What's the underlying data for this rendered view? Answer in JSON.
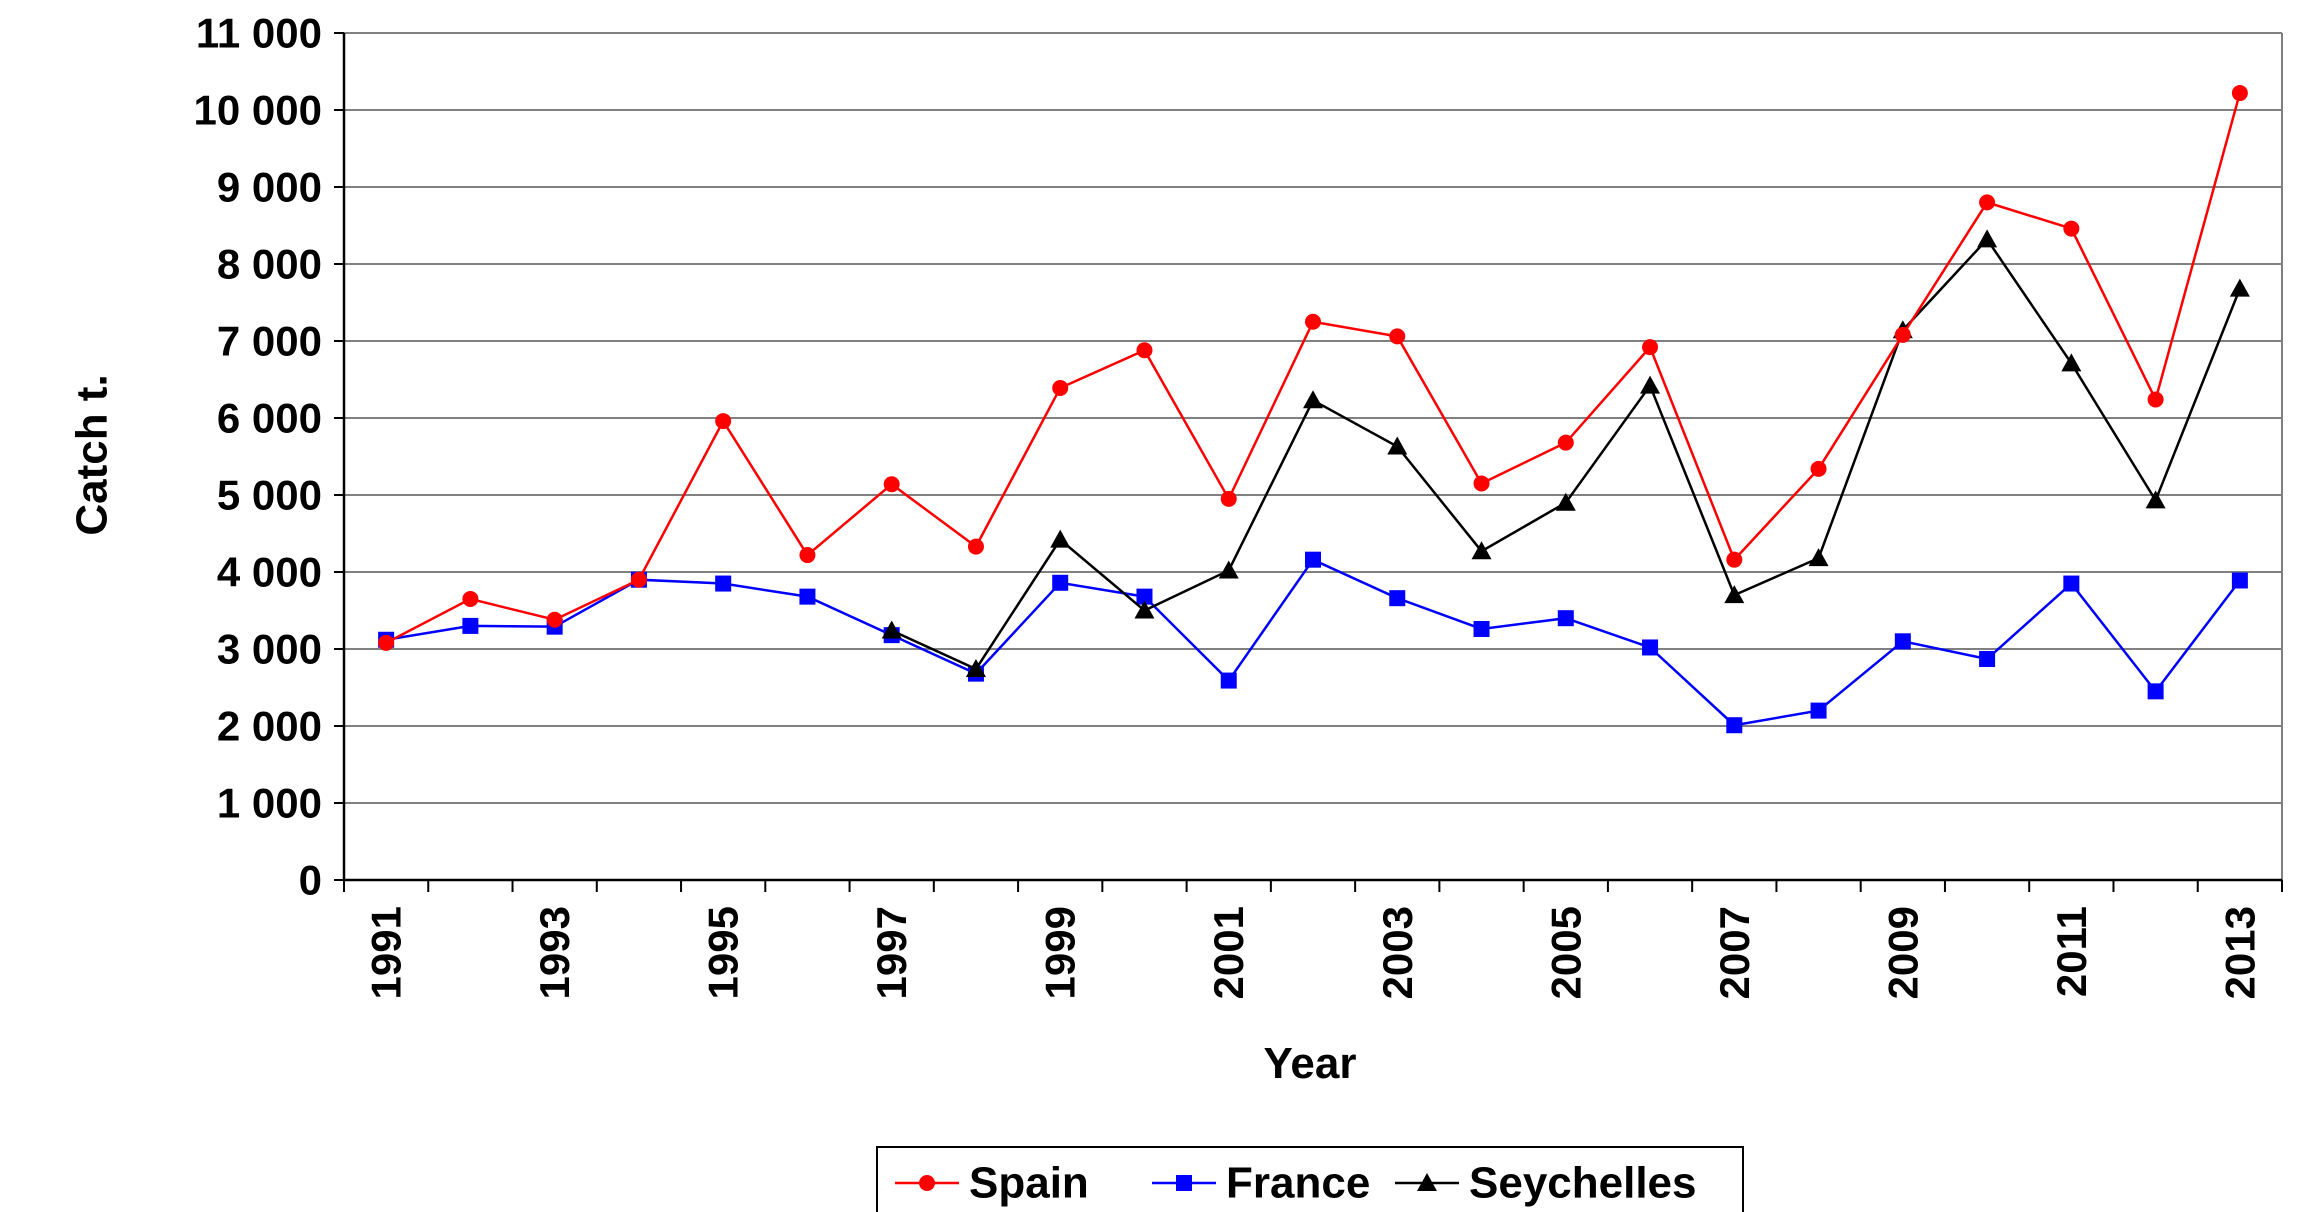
{
  "chart_data": {
    "type": "line",
    "title": "",
    "xlabel": "Year",
    "ylabel": "Catch t.",
    "ylim": [
      0,
      11000
    ],
    "ytick_values": [
      0,
      1000,
      2000,
      3000,
      4000,
      5000,
      6000,
      7000,
      8000,
      9000,
      10000,
      11000
    ],
    "ytick_labels": [
      "0",
      "1 000",
      "2 000",
      "3 000",
      "4 000",
      "5 000",
      "6 000",
      "7 000",
      "8 000",
      "9 000",
      "10 000",
      "11 000"
    ],
    "x": [
      1991,
      1992,
      1993,
      1994,
      1995,
      1996,
      1997,
      1998,
      1999,
      2000,
      2001,
      2002,
      2003,
      2004,
      2005,
      2006,
      2007,
      2008,
      2009,
      2010,
      2011,
      2012,
      2013
    ],
    "xtick_labels": [
      "1991",
      "1993",
      "1995",
      "1997",
      "1999",
      "2001",
      "2003",
      "2005",
      "2007",
      "2009",
      "2011",
      "2013"
    ],
    "grid": "horizontal",
    "legend_position": "bottom-center",
    "series": [
      {
        "name": "Spain",
        "color": "#ff0000",
        "marker": "circle",
        "points": [
          {
            "x": 1991,
            "y": 3080
          },
          {
            "x": 1992,
            "y": 3650
          },
          {
            "x": 1993,
            "y": 3380
          },
          {
            "x": 1994,
            "y": 3900
          },
          {
            "x": 1995,
            "y": 5960
          },
          {
            "x": 1996,
            "y": 4220
          },
          {
            "x": 1997,
            "y": 5140
          },
          {
            "x": 1998,
            "y": 4330
          },
          {
            "x": 1999,
            "y": 6390
          },
          {
            "x": 2000,
            "y": 6880
          },
          {
            "x": 2001,
            "y": 4950
          },
          {
            "x": 2002,
            "y": 7250
          },
          {
            "x": 2003,
            "y": 7060
          },
          {
            "x": 2004,
            "y": 5150
          },
          {
            "x": 2005,
            "y": 5680
          },
          {
            "x": 2006,
            "y": 6920
          },
          {
            "x": 2007,
            "y": 4160
          },
          {
            "x": 2008,
            "y": 5340
          },
          {
            "x": 2009,
            "y": 7080
          },
          {
            "x": 2010,
            "y": 8800
          },
          {
            "x": 2011,
            "y": 8460
          },
          {
            "x": 2012,
            "y": 6240
          },
          {
            "x": 2013,
            "y": 10220
          }
        ]
      },
      {
        "name": "France",
        "color": "#0000ff",
        "marker": "square",
        "points": [
          {
            "x": 1991,
            "y": 3120
          },
          {
            "x": 1992,
            "y": 3300
          },
          {
            "x": 1993,
            "y": 3290
          },
          {
            "x": 1994,
            "y": 3900
          },
          {
            "x": 1995,
            "y": 3850
          },
          {
            "x": 1996,
            "y": 3680
          },
          {
            "x": 1997,
            "y": 3180
          },
          {
            "x": 1998,
            "y": 2680
          },
          {
            "x": 1999,
            "y": 3860
          },
          {
            "x": 2000,
            "y": 3680
          },
          {
            "x": 2001,
            "y": 2590
          },
          {
            "x": 2002,
            "y": 4160
          },
          {
            "x": 2003,
            "y": 3660
          },
          {
            "x": 2004,
            "y": 3260
          },
          {
            "x": 2005,
            "y": 3400
          },
          {
            "x": 2006,
            "y": 3020
          },
          {
            "x": 2007,
            "y": 2010
          },
          {
            "x": 2008,
            "y": 2200
          },
          {
            "x": 2009,
            "y": 3100
          },
          {
            "x": 2010,
            "y": 2870
          },
          {
            "x": 2011,
            "y": 3850
          },
          {
            "x": 2012,
            "y": 2450
          },
          {
            "x": 2013,
            "y": 3890
          }
        ]
      },
      {
        "name": "Seychelles",
        "color": "#000000",
        "marker": "triangle",
        "points": [
          {
            "x": 1997,
            "y": 3240
          },
          {
            "x": 1998,
            "y": 2740
          },
          {
            "x": 1999,
            "y": 4420
          },
          {
            "x": 2000,
            "y": 3500
          },
          {
            "x": 2001,
            "y": 4020
          },
          {
            "x": 2002,
            "y": 6230
          },
          {
            "x": 2003,
            "y": 5630
          },
          {
            "x": 2004,
            "y": 4270
          },
          {
            "x": 2005,
            "y": 4900
          },
          {
            "x": 2006,
            "y": 6420
          },
          {
            "x": 2007,
            "y": 3700
          },
          {
            "x": 2008,
            "y": 4180
          },
          {
            "x": 2009,
            "y": 7140
          },
          {
            "x": 2010,
            "y": 8320
          },
          {
            "x": 2011,
            "y": 6710
          },
          {
            "x": 2012,
            "y": 4930
          },
          {
            "x": 2013,
            "y": 7680
          }
        ]
      }
    ]
  }
}
